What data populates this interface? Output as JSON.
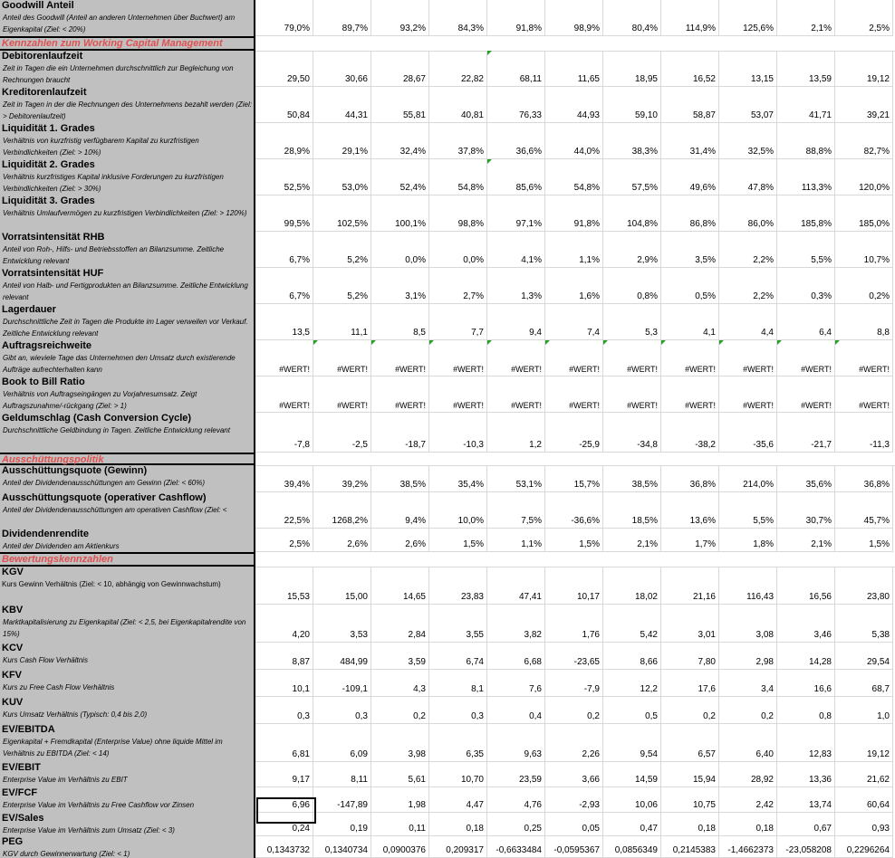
{
  "rows": [
    {
      "title": "Goodwill Anteil",
      "desc": "Anteil des Goodwill (Anteil an anderen Unternehmen über Buchwert) am Eigenkapital (Ziel: < 20%)",
      "values": [
        "79,0%",
        "89,7%",
        "93,2%",
        "84,3%",
        "91,8%",
        "98,9%",
        "80,4%",
        "114,9%",
        "125,6%",
        "2,1%",
        "2,5%"
      ]
    },
    {
      "section": "Kennzahlen zum Working Capital Management"
    },
    {
      "title": "Debitorenlaufzeit",
      "desc": "Zeit in Tagen die ein Unternehmen durchschnittlich zur Begleichung von Rechnungen braucht",
      "values": [
        "29,50",
        "30,66",
        "28,67",
        "22,82",
        "68,11",
        "11,65",
        "18,95",
        "16,52",
        "13,15",
        "13,59",
        "19,12"
      ]
    },
    {
      "title": "Kreditorenlaufzeit",
      "desc": "Zeit in Tagen in der die Rechnungen des Unternehmens bezahlt werden (Ziel: > Debitorenlaufzeit)",
      "values": [
        "50,84",
        "44,31",
        "55,81",
        "40,81",
        "76,33",
        "44,93",
        "59,10",
        "58,87",
        "53,07",
        "41,71",
        "39,21"
      ]
    },
    {
      "title": "Liquidität 1. Grades",
      "desc": "Verhältnis von kurzfristig verfügbarem Kapital zu kurzfristigen Verbindlichkeiten (Ziel: > 10%)",
      "values": [
        "28,9%",
        "29,1%",
        "32,4%",
        "37,8%",
        "36,6%",
        "44,0%",
        "38,3%",
        "31,4%",
        "32,5%",
        "88,8%",
        "82,7%"
      ]
    },
    {
      "title": "Liquidität 2. Grades",
      "desc": "Verhältnis kurzfristiges Kapital inklusive Forderungen zu kurzfristigen Verbindlichkeiten (Ziel: > 30%)",
      "values": [
        "52,5%",
        "53,0%",
        "52,4%",
        "54,8%",
        "85,6%",
        "54,8%",
        "57,5%",
        "49,6%",
        "47,8%",
        "113,3%",
        "120,0%"
      ]
    },
    {
      "title": "Liquidität 3. Grades",
      "desc": "Verhältnis Umlaufvermögen zu kurzfristigen Verbindlichkeiten (Ziel: > 120%)",
      "values": [
        "99,5%",
        "102,5%",
        "100,1%",
        "98,8%",
        "97,1%",
        "91,8%",
        "104,8%",
        "86,8%",
        "86,0%",
        "185,8%",
        "185,0%"
      ]
    },
    {
      "title": "Vorratsintensität RHB",
      "desc": "Anteil von Roh-, Hilfs- und Betriebsstoffen an Bilanzsumme. Zeitliche Entwicklung relevant",
      "values": [
        "6,7%",
        "5,2%",
        "0,0%",
        "0,0%",
        "4,1%",
        "1,1%",
        "2,9%",
        "3,5%",
        "2,2%",
        "5,5%",
        "10,7%"
      ]
    },
    {
      "title": "Vorratsintensität HUF",
      "desc": "Anteil von Halb- und Fertigprodukten an Bilanzsumme. Zeitliche Entwicklung relevant",
      "values": [
        "6,7%",
        "5,2%",
        "3,1%",
        "2,7%",
        "1,3%",
        "1,6%",
        "0,8%",
        "0,5%",
        "2,2%",
        "0,3%",
        "0,2%"
      ]
    },
    {
      "title": "Lagerdauer",
      "desc": "Durchschnittliche Zeit in Tagen die Produkte im Lager verweilen vor Verkauf. Zeitliche Entwicklung relevant",
      "values": [
        "13,5",
        "11,1",
        "8,5",
        "7,7",
        "9,4",
        "7,4",
        "5,3",
        "4,1",
        "4,4",
        "6,4",
        "8,8"
      ]
    },
    {
      "title": "Auftragsreichweite",
      "desc": "Gibt an, wieviele Tage das Unternehmen den Umsatz durch existierende Aufträge aufrechterhalten kann",
      "values": [
        "#WERT!",
        "#WERT!",
        "#WERT!",
        "#WERT!",
        "#WERT!",
        "#WERT!",
        "#WERT!",
        "#WERT!",
        "#WERT!",
        "#WERT!",
        "#WERT!"
      ]
    },
    {
      "title": "Book to Bill Ratio",
      "desc": "Verhältnis von Auftragseingängen zu Vorjahresumsatz. Zeigt Auftragszunahme/-rückgang (Ziel: > 1)",
      "values": [
        "#WERT!",
        "#WERT!",
        "#WERT!",
        "#WERT!",
        "#WERT!",
        "#WERT!",
        "#WERT!",
        "#WERT!",
        "#WERT!",
        "#WERT!",
        "#WERT!"
      ]
    },
    {
      "title": "Geldumschlag (Cash Conversion Cycle)",
      "desc": "Durchschnittliche Geldbindung in Tagen. Zeitliche Entwicklung relevant",
      "values": [
        "-7,8",
        "-2,5",
        "-18,7",
        "-10,3",
        "1,2",
        "-25,9",
        "-34,8",
        "-38,2",
        "-35,6",
        "-21,7",
        "-11,3"
      ]
    },
    {
      "section": "Ausschüttungspolitik"
    },
    {
      "title": "Ausschüttungsquote (Gewinn)",
      "desc": "Anteil der Dividendenausschüttungen am Gewinn (Ziel: < 60%)",
      "values": [
        "39,4%",
        "39,2%",
        "38,5%",
        "35,4%",
        "53,1%",
        "15,7%",
        "38,5%",
        "36,8%",
        "214,0%",
        "35,6%",
        "36,8%"
      ]
    },
    {
      "title": "Ausschüttungsquote (operativer Cashflow)",
      "desc": "Anteil der Dividendenausschüttungen am operativen Cashflow (Ziel: <",
      "values": [
        "22,5%",
        "1268,2%",
        "9,4%",
        "10,0%",
        "7,5%",
        "-36,6%",
        "18,5%",
        "13,6%",
        "5,5%",
        "30,7%",
        "45,7%"
      ]
    },
    {
      "title": "Dividendenrendite",
      "desc": "Anteil der Dividenden am Aktienkurs",
      "values": [
        "2,5%",
        "2,6%",
        "2,6%",
        "1,5%",
        "1,1%",
        "1,5%",
        "2,1%",
        "1,7%",
        "1,8%",
        "2,1%",
        "1,5%"
      ]
    },
    {
      "section": "Bewertungskennzahlen"
    },
    {
      "title": "KGV",
      "desc": "Kurs Gewinn Verhältnis (Ziel: < 10, abhängig von Gewinnwachstum)",
      "normal": true,
      "values": [
        "15,53",
        "15,00",
        "14,65",
        "23,83",
        "47,41",
        "10,17",
        "18,02",
        "21,16",
        "116,43",
        "16,56",
        "23,80"
      ]
    },
    {
      "title": "KBV",
      "desc": "Marktkapitalisierung zu Eigenkapital (Ziel: < 2,5, bei Eigenkapitalrendite von 15%)",
      "values": [
        "4,20",
        "3,53",
        "2,84",
        "3,55",
        "3,82",
        "1,76",
        "5,42",
        "3,01",
        "3,08",
        "3,46",
        "5,38"
      ]
    },
    {
      "title": "KCV",
      "desc": "Kurs Cash Flow Verhältnis",
      "values": [
        "8,87",
        "484,99",
        "3,59",
        "6,74",
        "6,68",
        "-23,65",
        "8,66",
        "7,80",
        "2,98",
        "14,28",
        "29,54"
      ]
    },
    {
      "title": "KFV",
      "desc": "Kurs zu Free Cash Flow Verhältnis",
      "values": [
        "10,1",
        "-109,1",
        "4,3",
        "8,1",
        "7,6",
        "-7,9",
        "12,2",
        "17,6",
        "3,4",
        "16,6",
        "68,7"
      ]
    },
    {
      "title": "KUV",
      "desc": "Kurs Umsatz Verhältnis (Typisch: 0,4 bis 2,0)",
      "values": [
        "0,3",
        "0,3",
        "0,2",
        "0,3",
        "0,4",
        "0,2",
        "0,5",
        "0,2",
        "0,2",
        "0,8",
        "1,0"
      ]
    },
    {
      "title": "EV/EBITDA",
      "desc": "Eigenkapital + Fremdkapital (Enterprise Value) ohne liquide Mittel im Verhältnis zu EBITDA (Ziel: < 14)",
      "values": [
        "6,81",
        "6,09",
        "3,98",
        "6,35",
        "9,63",
        "2,26",
        "9,54",
        "6,57",
        "6,40",
        "12,83",
        "19,12"
      ]
    },
    {
      "title": "EV/EBIT",
      "desc": "Enterprise Value im Verhältnis zu EBIT",
      "values": [
        "9,17",
        "8,11",
        "5,61",
        "10,70",
        "23,59",
        "3,66",
        "14,59",
        "15,94",
        "28,92",
        "13,36",
        "21,62"
      ]
    },
    {
      "title": "EV/FCF",
      "desc": "Enterprise Value im Verhältnis zu Free Cashflow vor Zinsen",
      "values": [
        "6,96",
        "-147,89",
        "1,98",
        "4,47",
        "4,76",
        "-2,93",
        "10,06",
        "10,75",
        "2,42",
        "13,74",
        "60,64"
      ]
    },
    {
      "title": "EV/Sales",
      "desc": "Enterprise Value im Verhältnis zum Umsatz (Ziel: < 3)",
      "values": [
        "0,24",
        "0,19",
        "0,11",
        "0,18",
        "0,25",
        "0,05",
        "0,47",
        "0,18",
        "0,18",
        "0,67",
        "0,93"
      ]
    },
    {
      "title": "PEG",
      "desc": "KGV durch Gewinnerwartung (Ziel: < 1)",
      "values": [
        "0,1343732",
        "0,1340734",
        "0,0900376",
        "0,209317",
        "-0,6633484",
        "-0,0595367",
        "0,0856349",
        "0,2145383",
        "-1,4662373",
        "-23,058208",
        "0,2296264"
      ]
    }
  ]
}
